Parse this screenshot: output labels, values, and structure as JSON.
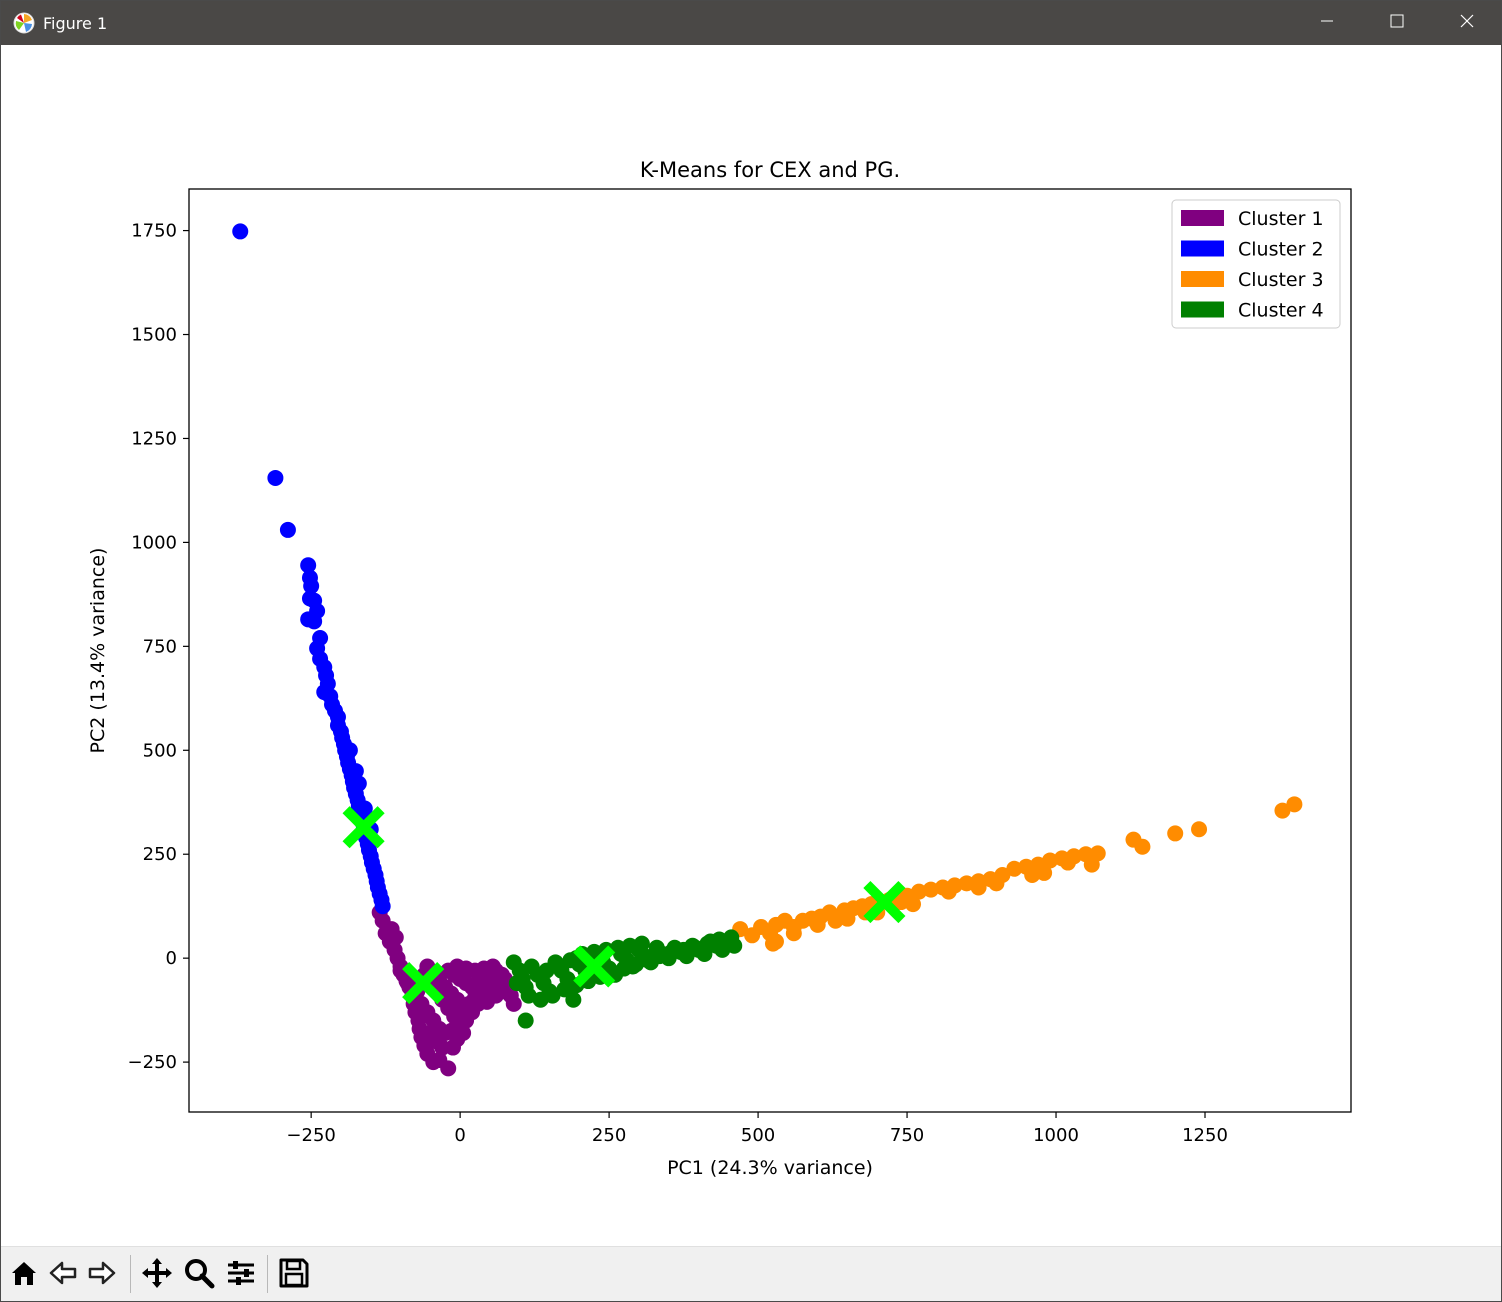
{
  "window": {
    "title": "Figure 1",
    "icons": {
      "app": "matplotlib-icon",
      "minimize": "minimize-icon",
      "maximize": "maximize-icon",
      "close": "close-icon"
    }
  },
  "toolbar": {
    "buttons": [
      {
        "icon": "home-icon"
      },
      {
        "icon": "back-arrow-icon"
      },
      {
        "icon": "forward-arrow-icon"
      },
      {
        "icon": "pan-icon"
      },
      {
        "icon": "zoom-icon"
      },
      {
        "icon": "configure-subplots-icon"
      },
      {
        "icon": "save-icon"
      }
    ]
  },
  "chart_data": {
    "type": "scatter",
    "title": "K-Means for CEX and PG.",
    "xlabel": "PC1 (24.3% variance)",
    "ylabel": "PC2 (13.4% variance)",
    "xlim": [
      -455,
      1495
    ],
    "ylim": [
      -370,
      1850
    ],
    "xticks": [
      -250,
      0,
      250,
      500,
      750,
      1000,
      1250
    ],
    "xtick_labels": [
      "−250",
      "0",
      "250",
      "500",
      "750",
      "1000",
      "1250"
    ],
    "yticks": [
      -250,
      0,
      250,
      500,
      750,
      1000,
      1250,
      1500,
      1750
    ],
    "ytick_labels": [
      "−250",
      "0",
      "250",
      "500",
      "750",
      "1000",
      "1250",
      "1500",
      "1750"
    ],
    "grid": false,
    "legend_position": "top-right",
    "series": [
      {
        "name": "Cluster 1",
        "color": "#800080",
        "points": [
          [
            -135,
            110
          ],
          [
            -130,
            90
          ],
          [
            -125,
            60
          ],
          [
            -118,
            40
          ],
          [
            -110,
            20
          ],
          [
            -105,
            0
          ],
          [
            -100,
            -20
          ],
          [
            -95,
            -40
          ],
          [
            -90,
            -55
          ],
          [
            -85,
            -70
          ],
          [
            -80,
            -90
          ],
          [
            -78,
            -110
          ],
          [
            -75,
            -130
          ],
          [
            -70,
            -150
          ],
          [
            -68,
            -170
          ],
          [
            -65,
            -190
          ],
          [
            -60,
            -210
          ],
          [
            -55,
            -230
          ],
          [
            -45,
            -250
          ],
          [
            -35,
            -245
          ],
          [
            -20,
            -265
          ],
          [
            -12,
            -215
          ],
          [
            -5,
            -195
          ],
          [
            5,
            -180
          ],
          [
            -60,
            -40
          ],
          [
            -50,
            -60
          ],
          [
            -40,
            -80
          ],
          [
            -30,
            -100
          ],
          [
            -20,
            -120
          ],
          [
            -10,
            -140
          ],
          [
            0,
            -160
          ],
          [
            10,
            -150
          ],
          [
            20,
            -130
          ],
          [
            -55,
            -20
          ],
          [
            -45,
            -35
          ],
          [
            -35,
            -55
          ],
          [
            -25,
            -70
          ],
          [
            -15,
            -85
          ],
          [
            -5,
            -100
          ],
          [
            5,
            -115
          ],
          [
            15,
            -110
          ],
          [
            25,
            -95
          ],
          [
            35,
            -80
          ],
          [
            45,
            -70
          ],
          [
            55,
            -60
          ],
          [
            65,
            -55
          ],
          [
            75,
            -50
          ],
          [
            80,
            -70
          ],
          [
            85,
            -90
          ],
          [
            -20,
            -30
          ],
          [
            -10,
            -40
          ],
          [
            0,
            -50
          ],
          [
            10,
            -60
          ],
          [
            20,
            -70
          ],
          [
            30,
            -60
          ],
          [
            40,
            -45
          ],
          [
            50,
            -35
          ],
          [
            60,
            -30
          ],
          [
            70,
            -40
          ],
          [
            -5,
            -20
          ],
          [
            10,
            -25
          ],
          [
            25,
            -30
          ],
          [
            40,
            -25
          ],
          [
            55,
            -20
          ],
          [
            -65,
            -110
          ],
          [
            -55,
            -130
          ],
          [
            -45,
            -150
          ],
          [
            -35,
            -170
          ],
          [
            -25,
            -180
          ],
          [
            -15,
            -175
          ],
          [
            -5,
            -160
          ],
          [
            5,
            -140
          ],
          [
            15,
            -120
          ],
          [
            30,
            -110
          ],
          [
            45,
            -105
          ],
          [
            60,
            -90
          ],
          [
            70,
            -80
          ],
          [
            90,
            -110
          ],
          [
            -40,
            -200
          ],
          [
            -30,
            -215
          ],
          [
            -50,
            -180
          ],
          [
            -100,
            -30
          ],
          [
            -88,
            -60
          ],
          [
            -72,
            -80
          ],
          [
            -115,
            70
          ],
          [
            -108,
            50
          ]
        ]
      },
      {
        "name": "Cluster 2",
        "color": "#0000ff",
        "points": [
          [
            -369,
            1748
          ],
          [
            -310,
            1155
          ],
          [
            -289,
            1030
          ],
          [
            -255,
            945
          ],
          [
            -252,
            915
          ],
          [
            -250,
            895
          ],
          [
            -252,
            865
          ],
          [
            -245,
            860
          ],
          [
            -240,
            835
          ],
          [
            -245,
            810
          ],
          [
            -255,
            815
          ],
          [
            -235,
            770
          ],
          [
            -240,
            745
          ],
          [
            -235,
            720
          ],
          [
            -228,
            700
          ],
          [
            -225,
            680
          ],
          [
            -222,
            660
          ],
          [
            -228,
            640
          ],
          [
            -218,
            630
          ],
          [
            -215,
            610
          ],
          [
            -210,
            595
          ],
          [
            -205,
            580
          ],
          [
            -205,
            560
          ],
          [
            -200,
            545
          ],
          [
            -198,
            530
          ],
          [
            -195,
            515
          ],
          [
            -193,
            500
          ],
          [
            -190,
            485
          ],
          [
            -188,
            470
          ],
          [
            -185,
            455
          ],
          [
            -182,
            440
          ],
          [
            -180,
            425
          ],
          [
            -178,
            410
          ],
          [
            -175,
            395
          ],
          [
            -172,
            380
          ],
          [
            -170,
            365
          ],
          [
            -168,
            350
          ],
          [
            -165,
            335
          ],
          [
            -162,
            320
          ],
          [
            -160,
            305
          ],
          [
            -158,
            290
          ],
          [
            -155,
            275
          ],
          [
            -153,
            260
          ],
          [
            -150,
            245
          ],
          [
            -148,
            230
          ],
          [
            -145,
            215
          ],
          [
            -142,
            200
          ],
          [
            -140,
            185
          ],
          [
            -138,
            170
          ],
          [
            -135,
            155
          ],
          [
            -132,
            140
          ],
          [
            -130,
            125
          ],
          [
            -185,
            500
          ],
          [
            -175,
            450
          ],
          [
            -170,
            420
          ],
          [
            -160,
            360
          ],
          [
            -150,
            310
          ]
        ]
      },
      {
        "name": "Cluster 3",
        "color": "#ff8c00",
        "points": [
          [
            470,
            70
          ],
          [
            490,
            55
          ],
          [
            505,
            75
          ],
          [
            520,
            60
          ],
          [
            530,
            80
          ],
          [
            545,
            90
          ],
          [
            560,
            75
          ],
          [
            575,
            90
          ],
          [
            590,
            95
          ],
          [
            605,
            100
          ],
          [
            620,
            110
          ],
          [
            630,
            90
          ],
          [
            645,
            115
          ],
          [
            660,
            120
          ],
          [
            675,
            125
          ],
          [
            690,
            130
          ],
          [
            700,
            110
          ],
          [
            720,
            140
          ],
          [
            735,
            145
          ],
          [
            750,
            150
          ],
          [
            770,
            160
          ],
          [
            790,
            165
          ],
          [
            810,
            170
          ],
          [
            830,
            175
          ],
          [
            850,
            180
          ],
          [
            870,
            185
          ],
          [
            890,
            190
          ],
          [
            910,
            200
          ],
          [
            930,
            215
          ],
          [
            950,
            220
          ],
          [
            970,
            225
          ],
          [
            990,
            235
          ],
          [
            1010,
            240
          ],
          [
            1030,
            245
          ],
          [
            1050,
            250
          ],
          [
            1070,
            252
          ],
          [
            1130,
            285
          ],
          [
            1145,
            268
          ],
          [
            1200,
            300
          ],
          [
            1240,
            310
          ],
          [
            1380,
            355
          ],
          [
            1400,
            370
          ],
          [
            530,
            40
          ],
          [
            560,
            60
          ],
          [
            600,
            80
          ],
          [
            640,
            100
          ],
          [
            680,
            110
          ],
          [
            760,
            130
          ],
          [
            820,
            160
          ],
          [
            900,
            180
          ],
          [
            960,
            200
          ],
          [
            1020,
            230
          ],
          [
            525,
            35
          ],
          [
            650,
            95
          ],
          [
            740,
            135
          ],
          [
            870,
            170
          ],
          [
            980,
            205
          ],
          [
            1060,
            225
          ]
        ]
      },
      {
        "name": "Cluster 4",
        "color": "#008000",
        "points": [
          [
            90,
            -10
          ],
          [
            100,
            -30
          ],
          [
            105,
            -50
          ],
          [
            110,
            -70
          ],
          [
            110,
            -150
          ],
          [
            120,
            -20
          ],
          [
            130,
            -40
          ],
          [
            140,
            -60
          ],
          [
            150,
            -80
          ],
          [
            160,
            -10
          ],
          [
            170,
            -30
          ],
          [
            180,
            -50
          ],
          [
            190,
            -100
          ],
          [
            195,
            0
          ],
          [
            200,
            -15
          ],
          [
            210,
            -30
          ],
          [
            220,
            -45
          ],
          [
            230,
            5
          ],
          [
            240,
            -10
          ],
          [
            250,
            -25
          ],
          [
            260,
            -40
          ],
          [
            270,
            10
          ],
          [
            280,
            -5
          ],
          [
            290,
            -20
          ],
          [
            300,
            20
          ],
          [
            310,
            5
          ],
          [
            320,
            -10
          ],
          [
            330,
            25
          ],
          [
            340,
            10
          ],
          [
            350,
            0
          ],
          [
            360,
            25
          ],
          [
            370,
            15
          ],
          [
            380,
            5
          ],
          [
            390,
            30
          ],
          [
            400,
            20
          ],
          [
            410,
            10
          ],
          [
            420,
            40
          ],
          [
            430,
            30
          ],
          [
            440,
            20
          ],
          [
            450,
            40
          ],
          [
            460,
            30
          ],
          [
            95,
            -60
          ],
          [
            115,
            -90
          ],
          [
            135,
            -100
          ],
          [
            155,
            -90
          ],
          [
            175,
            -75
          ],
          [
            195,
            -65
          ],
          [
            215,
            -55
          ],
          [
            235,
            -45
          ],
          [
            255,
            -35
          ],
          [
            275,
            -25
          ],
          [
            295,
            -15
          ],
          [
            315,
            -5
          ],
          [
            335,
            5
          ],
          [
            355,
            15
          ],
          [
            375,
            20
          ],
          [
            395,
            25
          ],
          [
            415,
            35
          ],
          [
            435,
            45
          ],
          [
            455,
            50
          ],
          [
            145,
            -30
          ],
          [
            165,
            -20
          ],
          [
            185,
            -5
          ],
          [
            205,
            10
          ],
          [
            225,
            15
          ],
          [
            245,
            20
          ],
          [
            265,
            25
          ],
          [
            285,
            30
          ],
          [
            305,
            35
          ]
        ]
      }
    ],
    "centroids": {
      "color": "#00ff00",
      "marker": "X",
      "points": [
        [
          -162,
          315
        ],
        [
          -62,
          -60
        ],
        [
          225,
          -20
        ],
        [
          712,
          135
        ]
      ]
    }
  }
}
